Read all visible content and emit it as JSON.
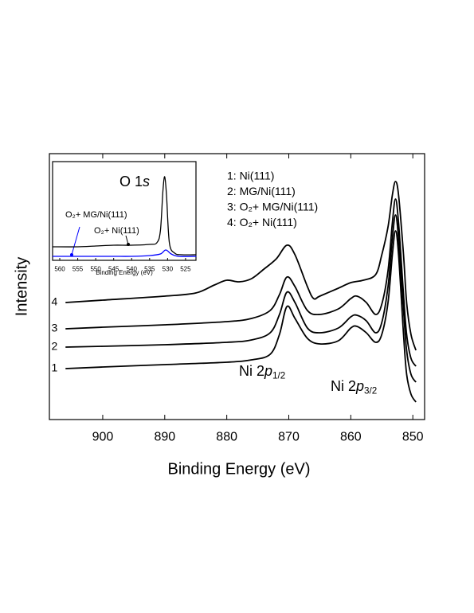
{
  "chart_data": [
    {
      "type": "line",
      "xlabel": "Binding Energy (eV)",
      "ylabel": "Intensity",
      "xlim": [
        908.6,
        848.1
      ],
      "xticks": [
        900,
        890,
        880,
        870,
        860,
        850
      ],
      "ylim": [
        0,
        334
      ],
      "legend": "top-right",
      "series": [
        {
          "name": "1: Ni(111)",
          "label": "1",
          "color": "#000000",
          "x": [
            906,
            900,
            890,
            880,
            876,
            873,
            871.5,
            870.3,
            869,
            867,
            865,
            862,
            860,
            859,
            857.5,
            856,
            855,
            854,
            853.3,
            852.8,
            852.3,
            851.5,
            851,
            850.3,
            849.5
          ],
          "values": [
            64,
            66,
            69,
            72,
            75,
            82,
            107,
            142,
            127,
            102,
            95,
            99,
            115,
            117,
            109,
            97,
            107,
            147,
            207,
            237,
            207,
            107,
            57,
            32,
            22
          ]
        },
        {
          "name": "2: MG/Ni(111)",
          "label": "2",
          "color": "#000000",
          "x": [
            906,
            900,
            890,
            880,
            876,
            873,
            871.5,
            870.3,
            869,
            867,
            865,
            862,
            860,
            859,
            857.5,
            856,
            855,
            854,
            853.3,
            852.8,
            852.3,
            851.5,
            851,
            850.3,
            849.5
          ],
          "values": [
            91,
            92,
            94,
            97,
            100,
            109,
            132,
            160,
            147,
            115,
            109,
            115,
            129,
            131,
            124,
            109,
            122,
            167,
            227,
            257,
            227,
            137,
            87,
            57,
            47
          ]
        },
        {
          "name": "3: O₂+ MG/Ni(111)",
          "label": "3",
          "color": "#000000",
          "x": [
            906,
            900,
            890,
            880,
            876,
            873,
            871.5,
            870.3,
            869,
            867,
            865,
            862,
            860,
            859,
            857.5,
            856,
            855,
            854,
            853.3,
            852.8,
            852.3,
            851.5,
            851,
            850.3,
            849.5
          ],
          "values": [
            114,
            116,
            119,
            123,
            127,
            137,
            157,
            179,
            167,
            137,
            132,
            139,
            152,
            155,
            147,
            132,
            145,
            187,
            247,
            277,
            247,
            157,
            107,
            77,
            67
          ]
        },
        {
          "name": "4: O₂+ Ni(111)",
          "label": "4",
          "color": "#000000",
          "x": [
            906,
            900,
            890,
            885,
            882,
            880,
            878,
            876,
            874,
            872,
            870.3,
            869,
            867,
            866,
            865,
            862,
            860,
            858,
            856,
            855,
            854,
            853.3,
            852.8,
            852.3,
            851.5,
            851,
            850.3,
            849.5
          ],
          "values": [
            147,
            150,
            155,
            159,
            169,
            175,
            173,
            177,
            189,
            202,
            219,
            207,
            167,
            152,
            155,
            165,
            172,
            175,
            182,
            207,
            242,
            282,
            299,
            282,
            207,
            147,
            107,
            87
          ]
        }
      ],
      "annotations": [
        {
          "parts": [
            "Ni 2",
            "p",
            "1/2"
          ]
        },
        {
          "parts": [
            "Ni 2",
            "p",
            "3/2"
          ]
        }
      ]
    },
    {
      "type": "line",
      "title_parts": [
        "O 1",
        "s"
      ],
      "xlabel": "Binding Energy (eV)",
      "xlim": [
        562,
        522.1
      ],
      "xticks": [
        560,
        555,
        550,
        545,
        540,
        535,
        530,
        525
      ],
      "ylim": [
        0,
        124
      ],
      "series": [
        {
          "name": "O₂+ Ni(111)",
          "color": "#000000",
          "x": [
            562,
            555,
            550,
            545,
            540,
            535,
            533,
            532,
            531.3,
            530.8,
            530.3,
            529.5,
            528,
            526,
            522
          ],
          "values": [
            17,
            17,
            18,
            19,
            19,
            20,
            22,
            37,
            87,
            105,
            82,
            22,
            9,
            7,
            7
          ]
        },
        {
          "name": "O₂+ MG/Ni(111)",
          "color": "#0000ff",
          "x": [
            562,
            555,
            550,
            545,
            540,
            535,
            532,
            530.5,
            529,
            527,
            522
          ],
          "values": [
            5,
            5,
            5,
            5,
            5,
            6,
            8,
            13,
            8,
            5,
            5
          ]
        }
      ]
    }
  ]
}
